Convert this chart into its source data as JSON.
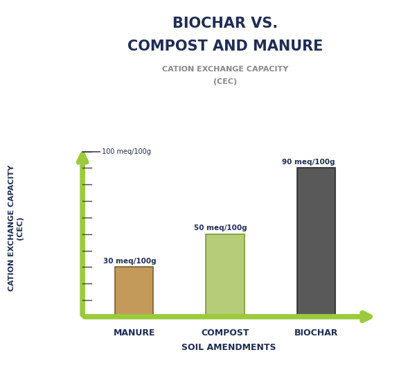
{
  "title_line1": "BIOCHAR VS.",
  "title_line2": "COMPOST AND MANURE",
  "subtitle_line1": "CATION EXCHANGE CAPACITY",
  "subtitle_line2": "(CEC)",
  "ylabel_line1": "CATION EXCHANGE CAPACITY",
  "ylabel_line2": "(CEC)",
  "xlabel": "SOIL AMENDMENTS",
  "categories": [
    "MANURE",
    "COMPOST",
    "BIOCHAR"
  ],
  "values": [
    30,
    50,
    90
  ],
  "labels": [
    "30 meq/100g",
    "50 meq/100g",
    "90 meq/100g"
  ],
  "bar_colors": [
    "#c49a5a",
    "#b5cc78",
    "#595959"
  ],
  "bar_edge_colors": [
    "#7a5c2e",
    "#7a9a30",
    "#2a2a2a"
  ],
  "background_color": "#ffffff",
  "title_color": "#1e2d52",
  "subtitle_color": "#888888",
  "axis_color": "#9bca3c",
  "label_color": "#1e2d52",
  "ylim_max": 105,
  "y_reference_label": "100 meq/100g",
  "tick_values": [
    10,
    20,
    30,
    40,
    50,
    60,
    70,
    80,
    90,
    100
  ]
}
